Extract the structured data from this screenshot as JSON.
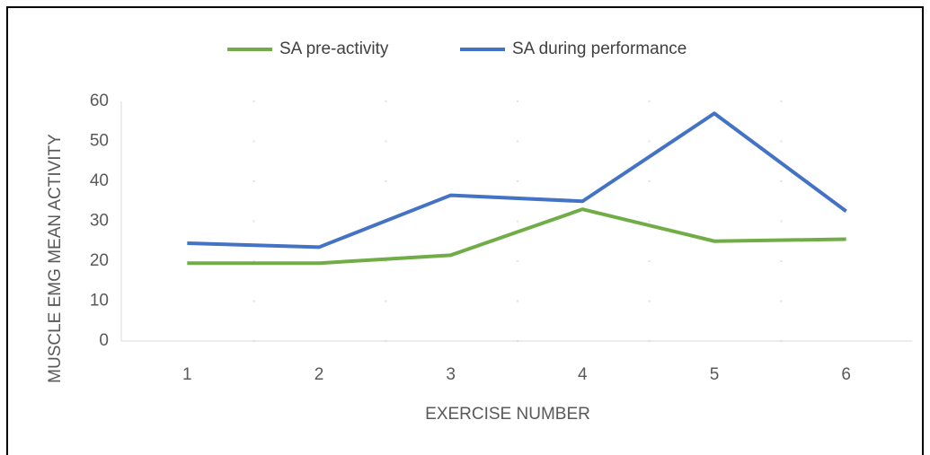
{
  "chart_data": {
    "type": "line",
    "y_axis_label": "MUSCLE EMG MEAN ACTIVITY",
    "x_axis_label": "EXERCISE NUMBER",
    "categories": [
      "1",
      "2",
      "3",
      "4",
      "5",
      "6"
    ],
    "series": [
      {
        "name": "SA pre-activity",
        "color": "#70ad47",
        "values": [
          19.5,
          19.5,
          21.5,
          33,
          25,
          25.5
        ]
      },
      {
        "name": "SA during performance",
        "color": "#4472c4",
        "values": [
          24.5,
          23.5,
          36.5,
          35,
          57,
          32.5
        ]
      }
    ],
    "ylim": [
      0,
      60
    ],
    "yticks": [
      0,
      10,
      20,
      30,
      40,
      50,
      60
    ],
    "grid": false,
    "legend": "top"
  }
}
